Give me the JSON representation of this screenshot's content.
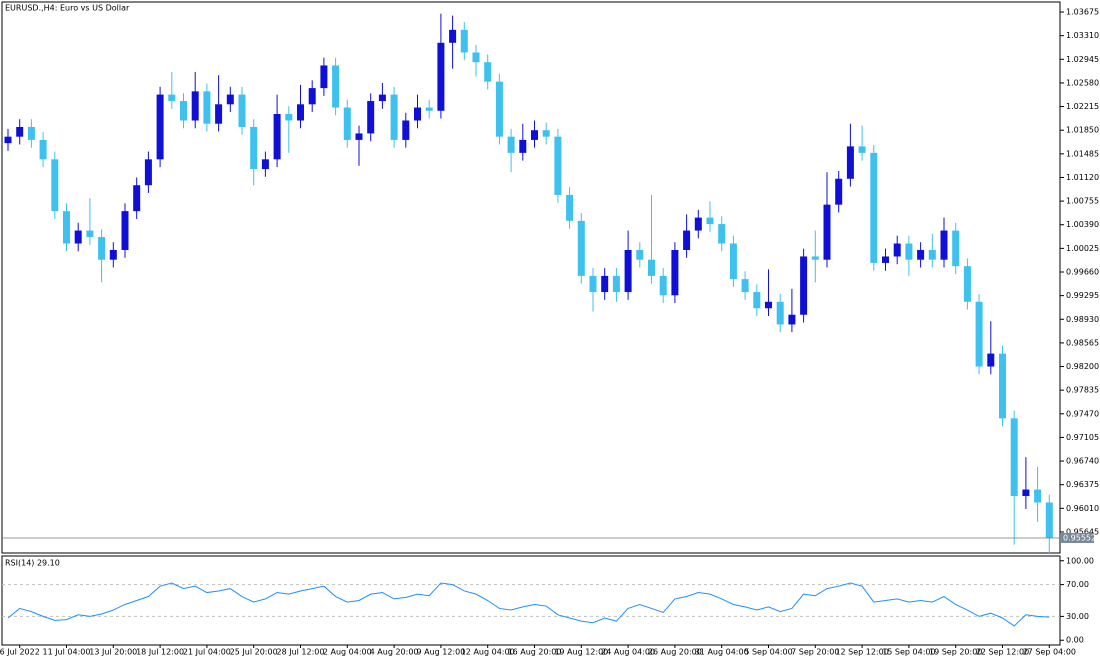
{
  "chart_data": {
    "type": "candlestick",
    "title": "EURUSD.,H4:  Euro vs US Dollar",
    "up_color": "#0f0fd6",
    "down_color": "#3ec1ef",
    "categories": [
      null,
      "6 Jul 2022",
      null,
      null,
      null,
      "11 Jul 04:00",
      null,
      null,
      null,
      "13 Jul 20:00",
      null,
      null,
      null,
      "18 Jul 12:00",
      null,
      null,
      null,
      "21 Jul 04:00",
      null,
      null,
      null,
      "25 Jul 20:00",
      null,
      null,
      null,
      "28 Jul 12:00",
      null,
      null,
      null,
      "2 Aug 04:00",
      null,
      null,
      null,
      "4 Aug 20:00",
      null,
      null,
      null,
      "9 Aug 12:00",
      null,
      null,
      null,
      "12 Aug 04:00",
      null,
      null,
      null,
      "16 Aug 20:00",
      null,
      null,
      null,
      "19 Aug 12:00",
      null,
      null,
      null,
      "24 Aug 04:00",
      null,
      null,
      null,
      "26 Aug 20:00",
      null,
      null,
      null,
      "31 Aug 04:00",
      null,
      null,
      null,
      "5 Sep 04:00",
      null,
      null,
      null,
      "7 Sep 20:00",
      null,
      null,
      null,
      "12 Sep 12:00",
      null,
      null,
      null,
      "15 Sep 04:00",
      null,
      null,
      null,
      "19 Sep 20:00",
      null,
      null,
      null,
      "22 Sep 12:00",
      null,
      null,
      null,
      "27 Sep 04:00"
    ],
    "ohlc": [
      [
        1.0165,
        1.0187,
        1.0153,
        1.0175
      ],
      [
        1.0175,
        1.0202,
        1.0163,
        1.019
      ],
      [
        1.019,
        1.0202,
        1.0158,
        1.017
      ],
      [
        1.017,
        1.0182,
        1.0128,
        1.014
      ],
      [
        1.014,
        1.0152,
        1.0048,
        1.006
      ],
      [
        1.006,
        1.0072,
        0.9998,
        1.001
      ],
      [
        1.001,
        1.0042,
        0.9998,
        1.003
      ],
      [
        1.003,
        1.008,
        1.0008,
        1.002
      ],
      [
        1.002,
        1.0032,
        0.995,
        0.9985
      ],
      [
        0.9985,
        1.0012,
        0.9973,
        1.0
      ],
      [
        1.0,
        1.0072,
        0.9988,
        1.006
      ],
      [
        1.006,
        1.0112,
        1.0048,
        1.01
      ],
      [
        1.01,
        1.0152,
        1.0088,
        1.014
      ],
      [
        1.014,
        1.0252,
        1.0128,
        1.024
      ],
      [
        1.024,
        1.0275,
        1.0218,
        1.023
      ],
      [
        1.023,
        1.0242,
        1.0188,
        1.02
      ],
      [
        1.02,
        1.0275,
        1.0188,
        1.0245
      ],
      [
        1.0245,
        1.0257,
        1.0183,
        1.0195
      ],
      [
        1.0195,
        1.027,
        1.0183,
        1.0225
      ],
      [
        1.0225,
        1.0252,
        1.0213,
        1.024
      ],
      [
        1.024,
        1.0252,
        1.0178,
        1.019
      ],
      [
        1.019,
        1.0202,
        1.01,
        1.0125
      ],
      [
        1.0125,
        1.0152,
        1.0113,
        1.014
      ],
      [
        1.014,
        1.024,
        1.0128,
        1.021
      ],
      [
        1.021,
        1.0222,
        1.015,
        1.02
      ],
      [
        1.02,
        1.0255,
        1.0188,
        1.0225
      ],
      [
        1.0225,
        1.0262,
        1.0213,
        1.025
      ],
      [
        1.025,
        1.0297,
        1.0238,
        1.0285
      ],
      [
        1.0285,
        1.0297,
        1.0208,
        1.022
      ],
      [
        1.022,
        1.0232,
        1.0158,
        1.017
      ],
      [
        1.017,
        1.0192,
        1.013,
        1.018
      ],
      [
        1.018,
        1.0242,
        1.0168,
        1.023
      ],
      [
        1.023,
        1.0258,
        1.0218,
        1.024
      ],
      [
        1.024,
        1.0252,
        1.0158,
        1.017
      ],
      [
        1.017,
        1.0212,
        1.0158,
        1.02
      ],
      [
        1.02,
        1.024,
        1.0188,
        1.022
      ],
      [
        1.022,
        1.0232,
        1.0203,
        1.0215
      ],
      [
        1.0215,
        1.0365,
        1.0203,
        1.032
      ],
      [
        1.032,
        1.0362,
        1.028,
        1.034
      ],
      [
        1.034,
        1.0352,
        1.0293,
        1.0305
      ],
      [
        1.0305,
        1.0317,
        1.0268,
        1.029
      ],
      [
        1.029,
        1.0302,
        1.0248,
        1.026
      ],
      [
        1.026,
        1.0272,
        1.0163,
        1.0175
      ],
      [
        1.0175,
        1.0187,
        1.012,
        1.015
      ],
      [
        1.015,
        1.0195,
        1.0138,
        1.017
      ],
      [
        1.017,
        1.02,
        1.0158,
        1.0185
      ],
      [
        1.0185,
        1.0197,
        1.0163,
        1.0175
      ],
      [
        1.0175,
        1.0187,
        1.0073,
        1.0085
      ],
      [
        1.0085,
        1.0097,
        1.0033,
        1.0045
      ],
      [
        1.0045,
        1.0057,
        0.9948,
        0.996
      ],
      [
        0.996,
        0.9972,
        0.9905,
        0.9935
      ],
      [
        0.9935,
        0.9972,
        0.9923,
        0.996
      ],
      [
        0.996,
        0.9972,
        0.992,
        0.9935
      ],
      [
        0.9935,
        1.003,
        0.9923,
        1.0
      ],
      [
        1.0,
        1.0012,
        0.9973,
        0.9985
      ],
      [
        0.9985,
        1.0085,
        0.9948,
        0.996
      ],
      [
        0.996,
        0.9972,
        0.9918,
        0.993
      ],
      [
        0.993,
        1.0012,
        0.9918,
        1.0
      ],
      [
        1.0,
        1.0055,
        0.9988,
        1.003
      ],
      [
        1.003,
        1.0062,
        1.0018,
        1.005
      ],
      [
        1.005,
        1.0075,
        1.0028,
        1.004
      ],
      [
        1.004,
        1.0052,
        0.9998,
        1.001
      ],
      [
        1.001,
        1.0022,
        0.9943,
        0.9955
      ],
      [
        0.9955,
        0.9967,
        0.9923,
        0.9935
      ],
      [
        0.9935,
        0.9947,
        0.9898,
        0.991
      ],
      [
        0.991,
        0.997,
        0.9898,
        0.992
      ],
      [
        0.992,
        0.9932,
        0.9873,
        0.9885
      ],
      [
        0.9885,
        0.994,
        0.9873,
        0.99
      ],
      [
        0.99,
        1.0002,
        0.9888,
        0.999
      ],
      [
        0.999,
        1.003,
        0.995,
        0.9985
      ],
      [
        0.9985,
        1.012,
        0.9973,
        1.007
      ],
      [
        1.007,
        1.0122,
        1.0058,
        1.011
      ],
      [
        1.011,
        1.0195,
        1.0098,
        1.016
      ],
      [
        1.016,
        1.0192,
        1.0138,
        1.015
      ],
      [
        1.015,
        1.0162,
        0.9968,
        0.998
      ],
      [
        0.998,
        1.0002,
        0.9968,
        0.999
      ],
      [
        0.999,
        1.0022,
        0.9978,
        1.001
      ],
      [
        1.001,
        1.0022,
        0.996,
        0.9985
      ],
      [
        0.9985,
        1.0012,
        0.9973,
        1.0
      ],
      [
        1.0,
        1.0025,
        0.9973,
        0.9985
      ],
      [
        0.9985,
        1.005,
        0.9973,
        1.003
      ],
      [
        1.003,
        1.0042,
        0.9963,
        0.9975
      ],
      [
        0.9975,
        0.9987,
        0.9908,
        0.992
      ],
      [
        0.992,
        0.9932,
        0.9808,
        0.982
      ],
      [
        0.982,
        0.989,
        0.9808,
        0.984
      ],
      [
        0.984,
        0.9852,
        0.9728,
        0.974
      ],
      [
        0.974,
        0.9752,
        0.9545,
        0.962
      ],
      [
        0.962,
        0.968,
        0.96,
        0.963
      ],
      [
        0.963,
        0.9665,
        0.958,
        0.961
      ],
      [
        0.961,
        0.9622,
        0.953,
        0.95552
      ]
    ],
    "ylim": [
      0.9532,
      1.0383
    ],
    "yticks": [
      1.03675,
      {
        "value": 1.0331,
        "label": "1.03310"
      },
      1.02945,
      {
        "value": 1.0258,
        "label": "1.02580"
      },
      1.02215,
      {
        "value": 1.0185,
        "label": "1.01850"
      },
      1.01485,
      {
        "value": 1.0112,
        "label": "1.01120"
      },
      1.00755,
      {
        "value": 1.0039,
        "label": "1.00390"
      },
      1.00025,
      {
        "value": 0.9966,
        "label": "0.99660"
      },
      0.99295,
      {
        "value": 0.9893,
        "label": "0.98930"
      },
      0.98565,
      {
        "value": 0.982,
        "label": "0.98200"
      },
      0.97835,
      {
        "value": 0.9747,
        "label": "0.97470"
      },
      0.97105,
      {
        "value": 0.9674,
        "label": "0.96740"
      },
      0.96375,
      {
        "value": 0.9601,
        "label": "0.96010"
      },
      0.95645
    ],
    "last_price": {
      "value": 0.95552,
      "label": "0.95552"
    },
    "rsi": {
      "label": "RSI(14) 29.10",
      "color": "#1e90ff",
      "values": [
        28,
        40,
        36,
        30,
        25,
        26,
        32,
        30,
        33,
        38,
        45,
        50,
        55,
        68,
        72,
        65,
        68,
        60,
        62,
        65,
        55,
        48,
        52,
        60,
        58,
        62,
        65,
        68,
        55,
        48,
        50,
        58,
        60,
        52,
        54,
        58,
        56,
        72,
        70,
        62,
        58,
        50,
        40,
        38,
        42,
        45,
        43,
        32,
        28,
        24,
        22,
        28,
        24,
        40,
        45,
        40,
        35,
        52,
        55,
        60,
        58,
        52,
        45,
        42,
        38,
        42,
        36,
        40,
        58,
        56,
        65,
        68,
        72,
        68,
        48,
        50,
        52,
        48,
        50,
        48,
        55,
        45,
        38,
        30,
        34,
        28,
        18,
        32,
        30,
        29.1
      ],
      "ylim": [
        -6,
        106
      ],
      "yticks": [
        {
          "value": 100,
          "label": "100.00"
        },
        {
          "value": 70,
          "label": "70.00"
        },
        {
          "value": 30,
          "label": "30.00"
        },
        {
          "value": 0,
          "label": "0.00"
        }
      ],
      "levels": [
        {
          "value": 70,
          "label": "70.00"
        },
        {
          "value": 30,
          "label": "30.00"
        }
      ]
    }
  }
}
